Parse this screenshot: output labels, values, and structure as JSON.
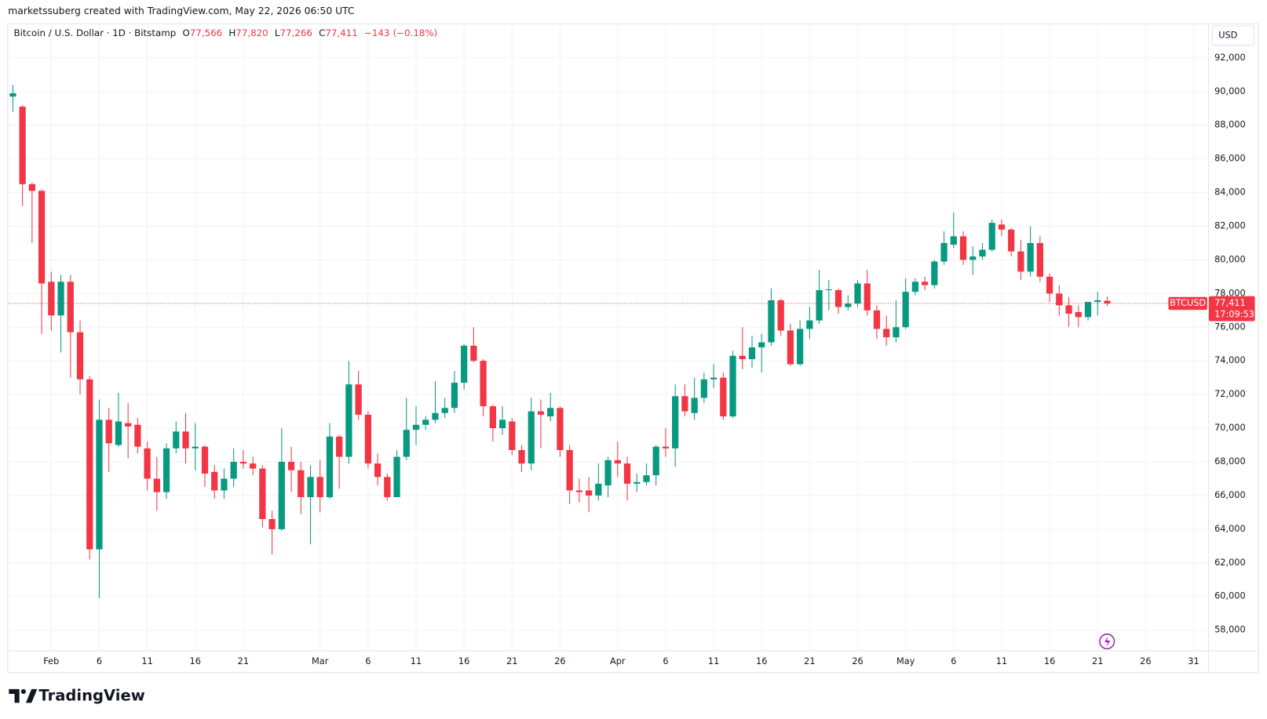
{
  "header": {
    "credit": "marketssuberg created with TradingView.com, May 22, 2026 06:50 UTC"
  },
  "legend": {
    "title": "Bitcoin / U.S. Dollar · 1D · Bitstamp",
    "items": [
      {
        "key": "O",
        "value": "77,566"
      },
      {
        "key": "H",
        "value": "77,820"
      },
      {
        "key": "L",
        "value": "77,266"
      },
      {
        "key": "C",
        "value": "77,411"
      }
    ],
    "change": "−143",
    "change_pct": "(−0.18%)"
  },
  "currency": "USD",
  "price_label": {
    "symbol": "BTCUSD",
    "value": "77,411",
    "countdown": "17:09:53"
  },
  "footer": {
    "brand": "TradingView"
  },
  "chart_data": {
    "type": "candlestick",
    "up_color": "#089981",
    "down_color": "#f23645",
    "grid": true,
    "ylim": [
      56800,
      94000
    ],
    "yticks": [
      {
        "value": 58000,
        "label": "58,000"
      },
      {
        "value": 60000,
        "label": "60,000"
      },
      {
        "value": 62000,
        "label": "62,000"
      },
      {
        "value": 64000,
        "label": "64,000"
      },
      {
        "value": 66000,
        "label": "66,000"
      },
      {
        "value": 68000,
        "label": "68,000"
      },
      {
        "value": 70000,
        "label": "70,000"
      },
      {
        "value": 72000,
        "label": "72,000"
      },
      {
        "value": 74000,
        "label": "74,000"
      },
      {
        "value": 76000,
        "label": "76,000"
      },
      {
        "value": 78000,
        "label": "78,000"
      },
      {
        "value": 80000,
        "label": "80,000"
      },
      {
        "value": 82000,
        "label": "82,000"
      },
      {
        "value": 84000,
        "label": "84,000"
      },
      {
        "value": 86000,
        "label": "86,000"
      },
      {
        "value": 88000,
        "label": "88,000"
      },
      {
        "value": 90000,
        "label": "90,000"
      },
      {
        "value": 92000,
        "label": "92,000"
      }
    ],
    "xlim": [
      "01-28",
      "06-01"
    ],
    "xticks": [
      {
        "value": "02-01",
        "label": "Feb"
      },
      {
        "value": "02-06",
        "label": "6"
      },
      {
        "value": "02-11",
        "label": "11"
      },
      {
        "value": "02-16",
        "label": "16"
      },
      {
        "value": "02-21",
        "label": "21"
      },
      {
        "value": "03-01",
        "label": "Mar"
      },
      {
        "value": "03-06",
        "label": "6"
      },
      {
        "value": "03-11",
        "label": "11"
      },
      {
        "value": "03-16",
        "label": "16"
      },
      {
        "value": "03-21",
        "label": "21"
      },
      {
        "value": "03-26",
        "label": "26"
      },
      {
        "value": "04-01",
        "label": "Apr"
      },
      {
        "value": "04-06",
        "label": "6"
      },
      {
        "value": "04-11",
        "label": "11"
      },
      {
        "value": "04-16",
        "label": "16"
      },
      {
        "value": "04-21",
        "label": "21"
      },
      {
        "value": "04-26",
        "label": "26"
      },
      {
        "value": "05-01",
        "label": "May"
      },
      {
        "value": "05-06",
        "label": "6"
      },
      {
        "value": "05-11",
        "label": "11"
      },
      {
        "value": "05-16",
        "label": "16"
      },
      {
        "value": "05-21",
        "label": "21"
      },
      {
        "value": "05-26",
        "label": "26"
      },
      {
        "value": "05-31",
        "label": "31"
      }
    ],
    "x": [
      "01-28",
      "01-29",
      "01-30",
      "01-31",
      "02-01",
      "02-02",
      "02-03",
      "02-04",
      "02-05",
      "02-06",
      "02-07",
      "02-08",
      "02-09",
      "02-10",
      "02-11",
      "02-12",
      "02-13",
      "02-14",
      "02-15",
      "02-16",
      "02-17",
      "02-18",
      "02-19",
      "02-20",
      "02-21",
      "02-22",
      "02-23",
      "02-24",
      "02-25",
      "02-26",
      "02-27",
      "02-28",
      "03-01",
      "03-02",
      "03-03",
      "03-04",
      "03-05",
      "03-06",
      "03-07",
      "03-08",
      "03-09",
      "03-10",
      "03-11",
      "03-12",
      "03-13",
      "03-14",
      "03-15",
      "03-16",
      "03-17",
      "03-18",
      "03-19",
      "03-20",
      "03-21",
      "03-22",
      "03-23",
      "03-24",
      "03-25",
      "03-26",
      "03-27",
      "03-28",
      "03-29",
      "03-30",
      "03-31",
      "04-01",
      "04-02",
      "04-03",
      "04-04",
      "04-05",
      "04-06",
      "04-07",
      "04-08",
      "04-09",
      "04-10",
      "04-11",
      "04-12",
      "04-13",
      "04-14",
      "04-15",
      "04-16",
      "04-17",
      "04-18",
      "04-19",
      "04-20",
      "04-21",
      "04-22",
      "04-23",
      "04-24",
      "04-25",
      "04-26",
      "04-27",
      "04-28",
      "04-29",
      "04-30",
      "05-01",
      "05-02",
      "05-03",
      "05-04",
      "05-05",
      "05-06",
      "05-07",
      "05-08",
      "05-09",
      "05-10",
      "05-11",
      "05-12",
      "05-13",
      "05-14",
      "05-15",
      "05-16",
      "05-17",
      "05-18",
      "05-19",
      "05-20",
      "05-21",
      "05-22"
    ],
    "open": [
      89700,
      89100,
      84500,
      84100,
      78700,
      76700,
      78700,
      75700,
      72900,
      62800,
      70500,
      69000,
      70300,
      70200,
      68800,
      67000,
      66200,
      68800,
      69800,
      68800,
      68900,
      67400,
      66300,
      67000,
      68000,
      67900,
      67600,
      64600,
      64000,
      68000,
      67500,
      65900,
      67100,
      65900,
      69500,
      68300,
      72600,
      70800,
      67900,
      67100,
      65900,
      68300,
      69900,
      70200,
      70500,
      70900,
      71200,
      72700,
      74900,
      74000,
      71300,
      70000,
      70400,
      68700,
      67900,
      71000,
      70700,
      71200,
      68700,
      66300,
      66300,
      66000,
      66600,
      68100,
      67900,
      66700,
      66800,
      67200,
      68900,
      68800,
      71900,
      70900,
      71800,
      72900,
      73000,
      70700,
      74300,
      74100,
      74800,
      75100,
      77600,
      75800,
      73800,
      75900,
      76400,
      78200,
      78200,
      77200,
      77400,
      78600,
      77000,
      75900,
      75400,
      76000,
      78100,
      78700,
      78500,
      79900,
      80900,
      81400,
      80000,
      80200,
      80600,
      82100,
      81800,
      80500,
      79300,
      81000,
      79000,
      78000,
      77300,
      76900,
      76600,
      77500,
      77566
    ],
    "high": [
      90400,
      89200,
      84600,
      84200,
      79300,
      79100,
      79100,
      76400,
      73100,
      71700,
      71200,
      72100,
      71500,
      70600,
      69200,
      68300,
      69100,
      70400,
      70900,
      70300,
      69000,
      67800,
      67600,
      68800,
      68700,
      68300,
      67800,
      65100,
      70000,
      68900,
      68000,
      67800,
      68100,
      70300,
      69600,
      74000,
      73400,
      71000,
      68500,
      67300,
      68700,
      71800,
      71300,
      70700,
      72800,
      71800,
      73400,
      75000,
      76000,
      74100,
      71400,
      71300,
      70600,
      69000,
      71800,
      71700,
      72100,
      71300,
      69000,
      67000,
      67100,
      67900,
      68300,
      69200,
      68300,
      67300,
      67900,
      69000,
      70000,
      72600,
      72600,
      73000,
      73300,
      73800,
      73300,
      74600,
      76000,
      75500,
      75600,
      78300,
      77700,
      76200,
      76400,
      77200,
      79400,
      78800,
      78300,
      77900,
      78800,
      79400,
      77300,
      76700,
      77600,
      78900,
      78900,
      79000,
      80000,
      81700,
      82800,
      81700,
      80800,
      81000,
      82400,
      82400,
      81900,
      81200,
      82000,
      81400,
      79200,
      78500,
      77800,
      77300,
      77500,
      78100,
      77820
    ],
    "low": [
      88800,
      83200,
      81000,
      75600,
      75800,
      74500,
      73000,
      72000,
      62200,
      59900,
      67400,
      68900,
      68200,
      68500,
      66300,
      65100,
      65800,
      68500,
      67900,
      67500,
      66500,
      65800,
      65800,
      66500,
      67600,
      67200,
      64100,
      62500,
      63900,
      66200,
      64900,
      63100,
      65000,
      65800,
      66400,
      67900,
      70500,
      67600,
      66600,
      65700,
      65900,
      68100,
      69000,
      69900,
      70300,
      70600,
      70900,
      72300,
      73900,
      70700,
      69200,
      69600,
      68400,
      67400,
      67500,
      68800,
      70400,
      68300,
      65500,
      65600,
      65000,
      65700,
      65900,
      67100,
      65700,
      66200,
      66600,
      66600,
      68300,
      67700,
      70700,
      70500,
      71500,
      72400,
      70500,
      70600,
      73500,
      73600,
      73300,
      74900,
      75500,
      73700,
      73700,
      75300,
      76200,
      77000,
      76800,
      77000,
      77200,
      76700,
      75300,
      74900,
      75100,
      75900,
      77900,
      78200,
      78300,
      79700,
      80700,
      79700,
      79100,
      80000,
      80500,
      81400,
      80200,
      78800,
      79000,
      78700,
      77500,
      76700,
      76000,
      76000,
      76400,
      76700,
      77266
    ],
    "close": [
      89900,
      84500,
      84100,
      78600,
      76700,
      78700,
      75700,
      72900,
      62800,
      70500,
      69100,
      70400,
      70100,
      68900,
      67000,
      66200,
      68800,
      69800,
      68800,
      68900,
      67300,
      66300,
      67000,
      68000,
      67900,
      67600,
      64600,
      64000,
      68000,
      67500,
      65900,
      67100,
      65900,
      69500,
      68300,
      72600,
      70800,
      67900,
      67100,
      65900,
      68300,
      69900,
      70200,
      70500,
      70900,
      71200,
      72700,
      74900,
      74000,
      71300,
      70000,
      70500,
      68700,
      67900,
      71000,
      70800,
      71200,
      68700,
      66300,
      66200,
      66000,
      66700,
      68100,
      67900,
      66700,
      66800,
      67200,
      68900,
      68800,
      71900,
      71000,
      71800,
      72900,
      73000,
      70700,
      74300,
      74100,
      74800,
      75100,
      77600,
      75800,
      73800,
      75900,
      76400,
      78200,
      78250,
      77200,
      77400,
      78600,
      77000,
      75900,
      75400,
      76000,
      78100,
      78700,
      78500,
      79900,
      81000,
      81400,
      80000,
      80200,
      80600,
      82200,
      81800,
      80500,
      79300,
      81000,
      79000,
      78000,
      77300,
      76800,
      76600,
      77500,
      77600,
      77411
    ]
  }
}
